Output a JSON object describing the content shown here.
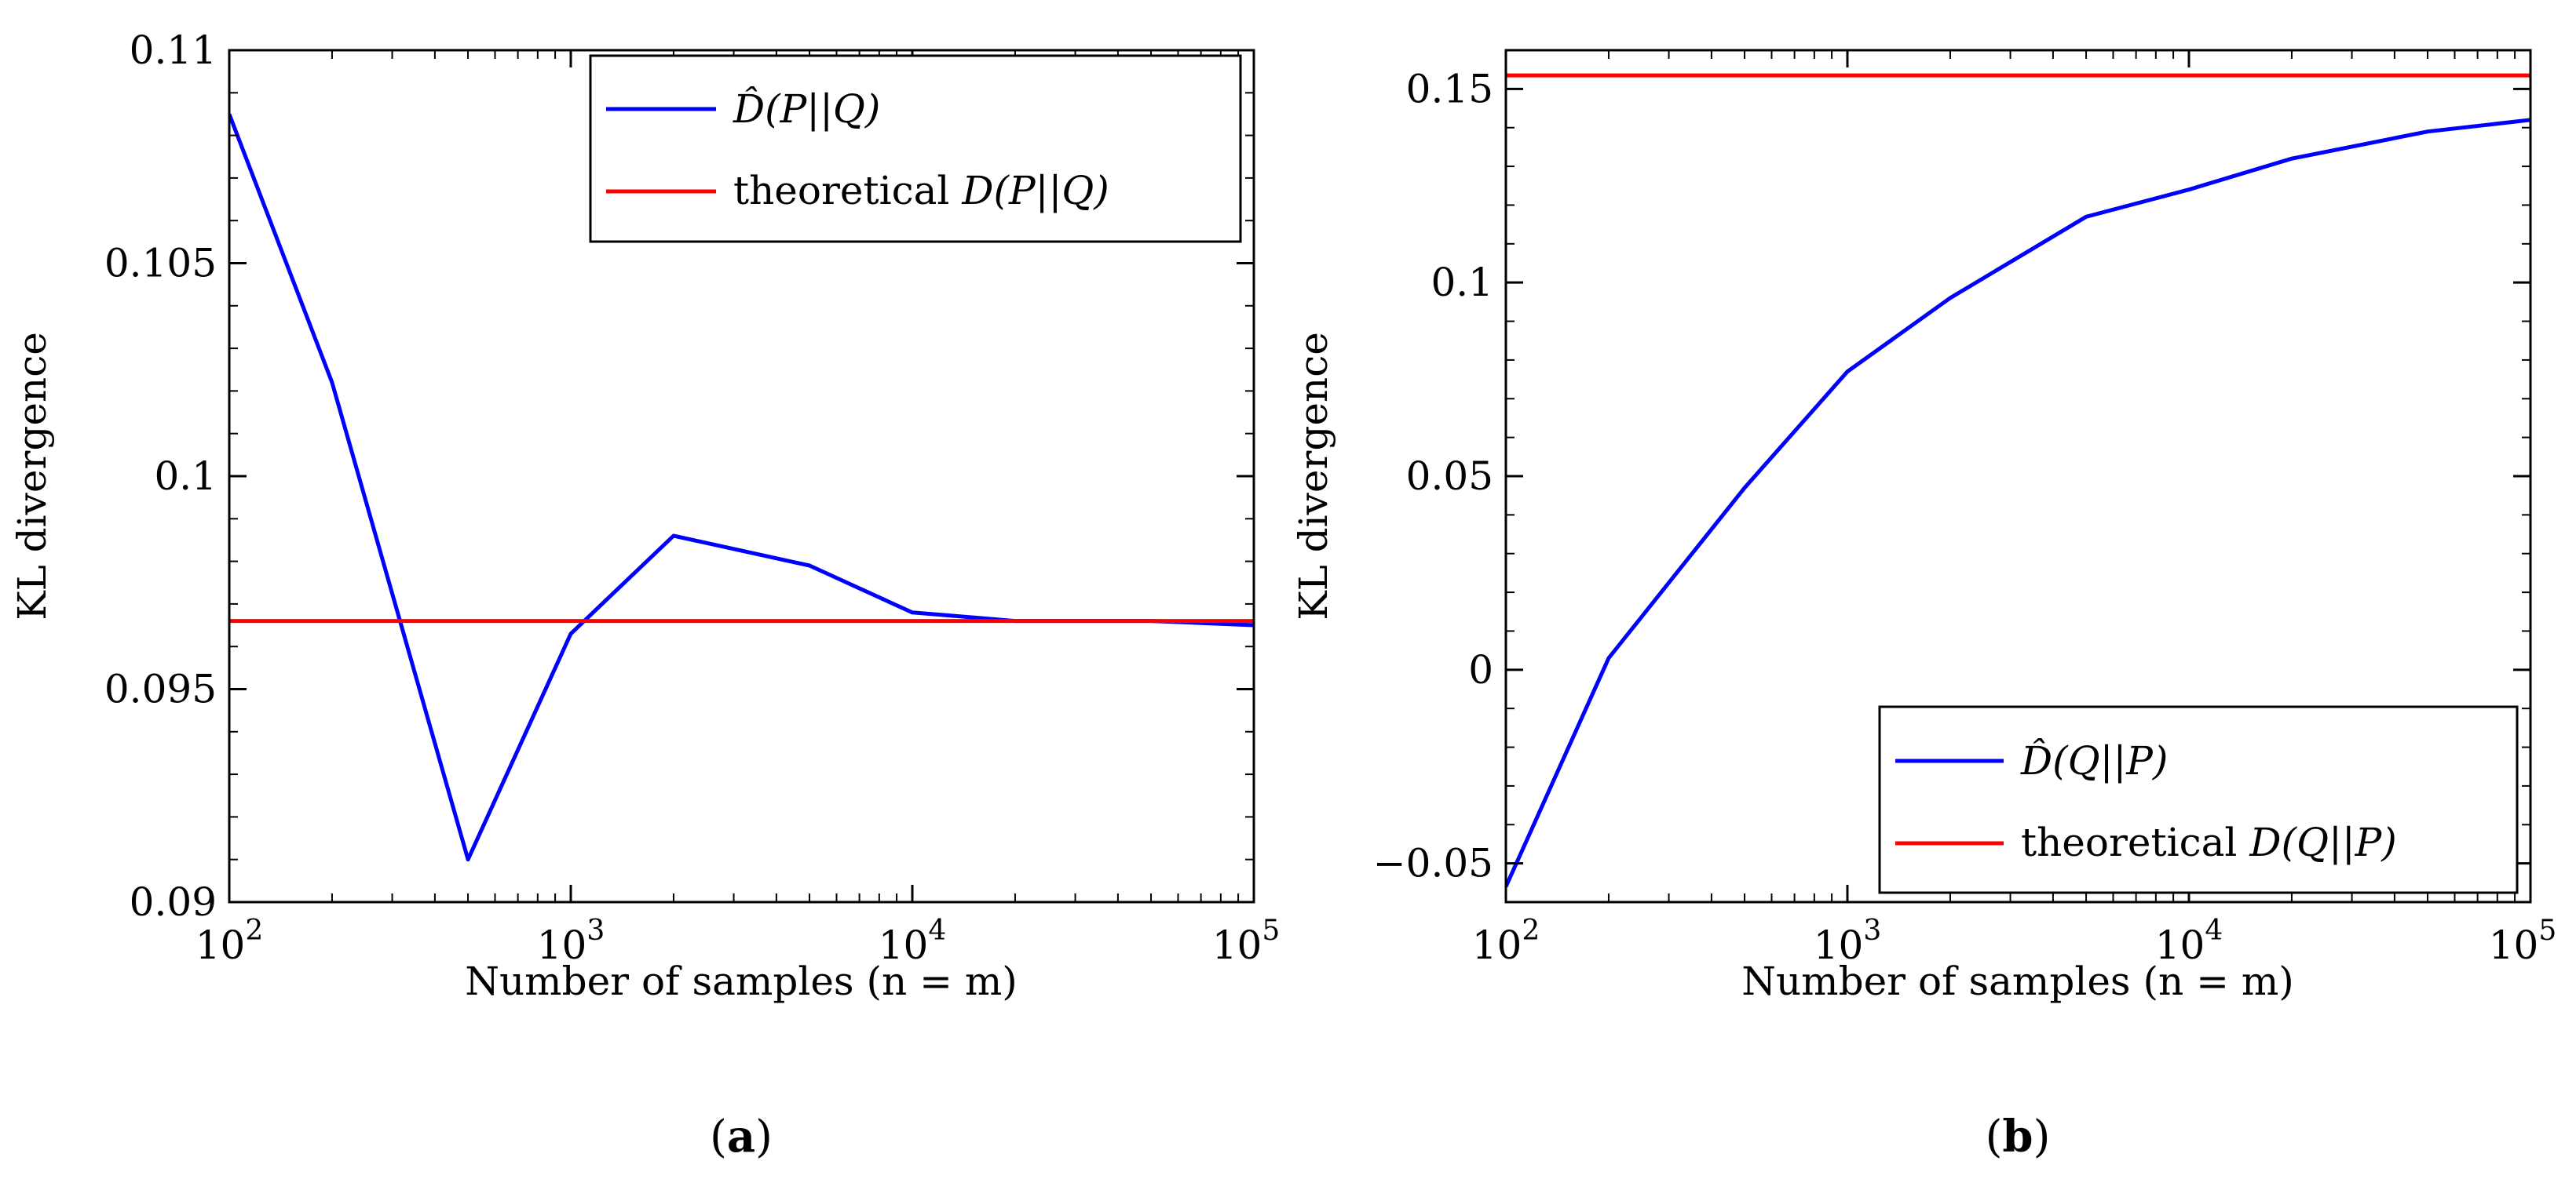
{
  "chart_data": [
    {
      "type": "line",
      "panel_label_open": "(",
      "panel_label_letter": "a",
      "panel_label_close": ")",
      "xscale": "log",
      "xlim": [
        100,
        100000
      ],
      "ylim": [
        0.09,
        0.11
      ],
      "xlabel": "Number of samples (n = m)",
      "ylabel": "KL divergence",
      "x_ticks": [
        {
          "value": 100,
          "base": "10",
          "exp": "2"
        },
        {
          "value": 1000,
          "base": "10",
          "exp": "3"
        },
        {
          "value": 10000,
          "base": "10",
          "exp": "4"
        },
        {
          "value": 100000,
          "base": "10",
          "exp": "5"
        }
      ],
      "y_ticks": [
        {
          "value": 0.09,
          "label": "0.09"
        },
        {
          "value": 0.095,
          "label": "0.095"
        },
        {
          "value": 0.1,
          "label": "0.1"
        },
        {
          "value": 0.105,
          "label": "0.105"
        },
        {
          "value": 0.11,
          "label": "0.11"
        }
      ],
      "legend_position": "top-right",
      "series": [
        {
          "name": "D̂(P||Q)",
          "legend_hat": "D̂",
          "legend_args": "(P||Q)",
          "color": "#0000ff",
          "x": [
            100,
            200,
            500,
            1000,
            2000,
            5000,
            10000,
            20000,
            50000,
            100000
          ],
          "y": [
            0.1085,
            0.1022,
            0.091,
            0.0963,
            0.0986,
            0.0979,
            0.0968,
            0.0966,
            0.0966,
            0.0965
          ]
        },
        {
          "name": "theoretical D(P||Q)",
          "legend_prefix": "theoretical",
          "legend_d": "D",
          "legend_args": "(P||Q)",
          "color": "#ff0000",
          "x": [
            100,
            100000
          ],
          "y": [
            0.0966,
            0.0966
          ]
        }
      ]
    },
    {
      "type": "line",
      "panel_label_open": "(",
      "panel_label_letter": "b",
      "panel_label_close": ")",
      "xscale": "log",
      "xlim": [
        100,
        100000
      ],
      "ylim": [
        -0.06,
        0.16
      ],
      "xlabel": "Number of samples (n = m)",
      "ylabel": "KL divergence",
      "x_ticks": [
        {
          "value": 100,
          "base": "10",
          "exp": "2"
        },
        {
          "value": 1000,
          "base": "10",
          "exp": "3"
        },
        {
          "value": 10000,
          "base": "10",
          "exp": "4"
        },
        {
          "value": 100000,
          "base": "10",
          "exp": "5"
        }
      ],
      "y_ticks": [
        {
          "value": -0.05,
          "label": "−0.05"
        },
        {
          "value": 0,
          "label": "0"
        },
        {
          "value": 0.05,
          "label": "0.05"
        },
        {
          "value": 0.1,
          "label": "0.1"
        },
        {
          "value": 0.15,
          "label": "0.15"
        }
      ],
      "legend_position": "bottom-right",
      "series": [
        {
          "name": "D̂(Q||P)",
          "legend_hat": "D̂",
          "legend_args": "(Q||P)",
          "color": "#0000ff",
          "x": [
            100,
            200,
            500,
            1000,
            2000,
            5000,
            10000,
            20000,
            50000,
            100000
          ],
          "y": [
            -0.056,
            0.003,
            0.047,
            0.077,
            0.096,
            0.117,
            0.124,
            0.132,
            0.139,
            0.142
          ]
        },
        {
          "name": "theoretical D(Q||P)",
          "legend_prefix": "theoretical",
          "legend_d": "D",
          "legend_args": "(Q||P)",
          "color": "#ff0000",
          "x": [
            100,
            100000
          ],
          "y": [
            0.1535,
            0.1535
          ]
        }
      ]
    }
  ]
}
